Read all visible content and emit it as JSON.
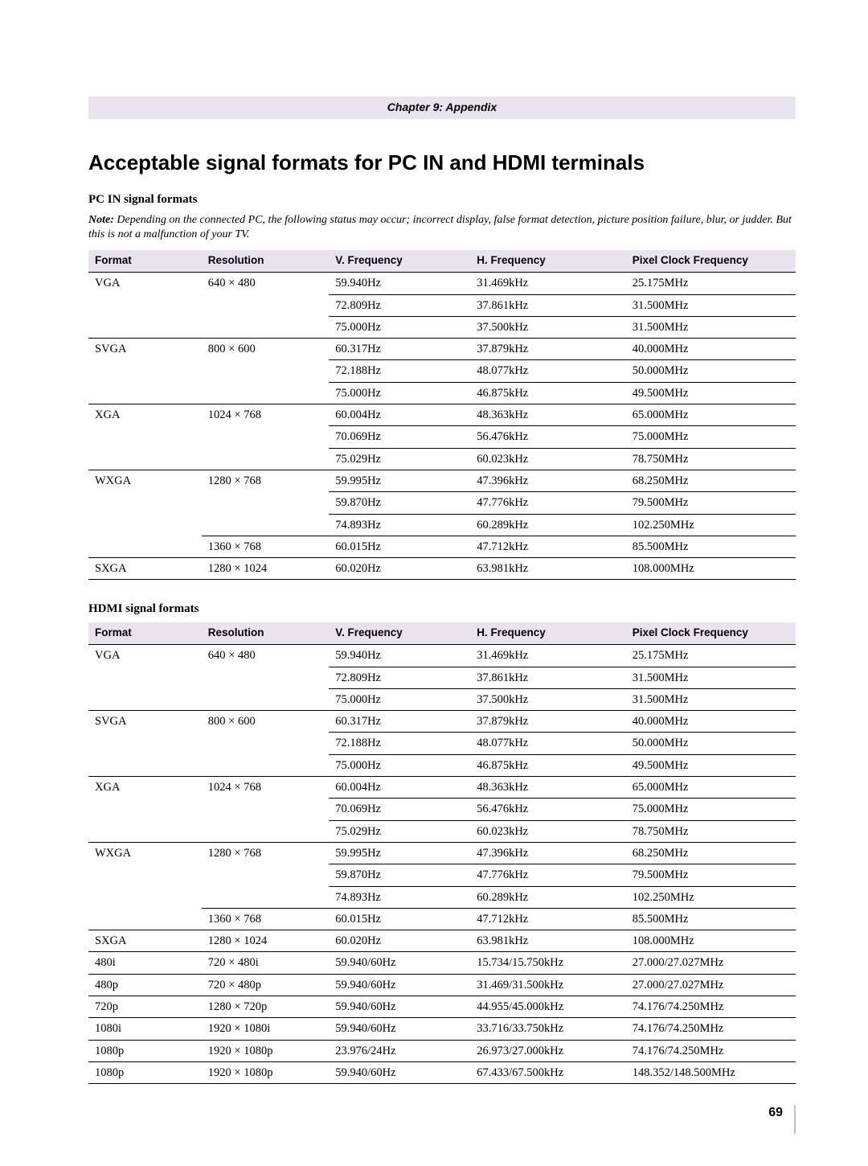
{
  "chapter_label": "Chapter 9: Appendix",
  "title": "Acceptable signal formats for PC IN and HDMI terminals",
  "note_bold": "Note:",
  "note_text": " Depending on the connected PC, the following status may occur; incorrect display, false format detection, picture position failure, blur, or judder. But this is not a malfunction of your TV.",
  "headers": {
    "format": "Format",
    "resolution": "Resolution",
    "vfreq": "V. Frequency",
    "hfreq": "H. Frequency",
    "pclk": "Pixel Clock Frequency"
  },
  "pc_heading": "PC IN signal formats",
  "hdmi_heading": "HDMI signal formats",
  "pc_rows": [
    {
      "f": "VGA",
      "r": "640 × 480",
      "v": "59.940Hz",
      "h": "31.469kHz",
      "p": "25.175MHz"
    },
    {
      "f": "",
      "r": "",
      "v": "72.809Hz",
      "h": "37.861kHz",
      "p": "31.500MHz"
    },
    {
      "f": "",
      "r": "",
      "v": "75.000Hz",
      "h": "37.500kHz",
      "p": "31.500MHz"
    },
    {
      "f": "SVGA",
      "r": "800 × 600",
      "v": "60.317Hz",
      "h": "37.879kHz",
      "p": "40.000MHz"
    },
    {
      "f": "",
      "r": "",
      "v": "72.188Hz",
      "h": "48.077kHz",
      "p": "50.000MHz"
    },
    {
      "f": "",
      "r": "",
      "v": "75.000Hz",
      "h": "46.875kHz",
      "p": "49.500MHz"
    },
    {
      "f": "XGA",
      "r": "1024 × 768",
      "v": "60.004Hz",
      "h": "48.363kHz",
      "p": "65.000MHz"
    },
    {
      "f": "",
      "r": "",
      "v": "70.069Hz",
      "h": "56.476kHz",
      "p": "75.000MHz"
    },
    {
      "f": "",
      "r": "",
      "v": "75.029Hz",
      "h": "60.023kHz",
      "p": "78.750MHz"
    },
    {
      "f": "WXGA",
      "r": "1280 × 768",
      "v": "59.995Hz",
      "h": "47.396kHz",
      "p": "68.250MHz"
    },
    {
      "f": "",
      "r": "",
      "v": "59.870Hz",
      "h": "47.776kHz",
      "p": "79.500MHz"
    },
    {
      "f": "",
      "r": "",
      "v": "74.893Hz",
      "h": "60.289kHz",
      "p": "102.250MHz"
    },
    {
      "f": "",
      "r": "1360 × 768",
      "v": "60.015Hz",
      "h": "47.712kHz",
      "p": "85.500MHz"
    },
    {
      "f": "SXGA",
      "r": "1280 × 1024",
      "v": "60.020Hz",
      "h": "63.981kHz",
      "p": "108.000MHz"
    }
  ],
  "hdmi_rows": [
    {
      "f": "VGA",
      "r": "640 × 480",
      "v": "59.940Hz",
      "h": "31.469kHz",
      "p": "25.175MHz"
    },
    {
      "f": "",
      "r": "",
      "v": "72.809Hz",
      "h": "37.861kHz",
      "p": "31.500MHz"
    },
    {
      "f": "",
      "r": "",
      "v": "75.000Hz",
      "h": "37.500kHz",
      "p": "31.500MHz"
    },
    {
      "f": "SVGA",
      "r": "800 × 600",
      "v": "60.317Hz",
      "h": "37.879kHz",
      "p": "40.000MHz"
    },
    {
      "f": "",
      "r": "",
      "v": "72.188Hz",
      "h": "48.077kHz",
      "p": "50.000MHz"
    },
    {
      "f": "",
      "r": "",
      "v": "75.000Hz",
      "h": "46.875kHz",
      "p": "49.500MHz"
    },
    {
      "f": "XGA",
      "r": "1024 × 768",
      "v": "60.004Hz",
      "h": "48.363kHz",
      "p": "65.000MHz"
    },
    {
      "f": "",
      "r": "",
      "v": "70.069Hz",
      "h": "56.476kHz",
      "p": "75.000MHz"
    },
    {
      "f": "",
      "r": "",
      "v": "75.029Hz",
      "h": "60.023kHz",
      "p": "78.750MHz"
    },
    {
      "f": "WXGA",
      "r": "1280 × 768",
      "v": "59.995Hz",
      "h": "47.396kHz",
      "p": "68.250MHz"
    },
    {
      "f": "",
      "r": "",
      "v": "59.870Hz",
      "h": "47.776kHz",
      "p": "79.500MHz"
    },
    {
      "f": "",
      "r": "",
      "v": "74.893Hz",
      "h": "60.289kHz",
      "p": "102.250MHz"
    },
    {
      "f": "",
      "r": "1360 × 768",
      "v": "60.015Hz",
      "h": "47.712kHz",
      "p": "85.500MHz"
    },
    {
      "f": "SXGA",
      "r": "1280 × 1024",
      "v": "60.020Hz",
      "h": "63.981kHz",
      "p": "108.000MHz"
    },
    {
      "f": "480i",
      "r": "720 × 480i",
      "v": "59.940/60Hz",
      "h": "15.734/15.750kHz",
      "p": "27.000/27.027MHz"
    },
    {
      "f": "480p",
      "r": "720 × 480p",
      "v": "59.940/60Hz",
      "h": "31.469/31.500kHz",
      "p": "27.000/27.027MHz"
    },
    {
      "f": "720p",
      "r": "1280 × 720p",
      "v": "59.940/60Hz",
      "h": "44.955/45.000kHz",
      "p": "74.176/74.250MHz"
    },
    {
      "f": "1080i",
      "r": "1920 × 1080i",
      "v": "59.940/60Hz",
      "h": "33.716/33.750kHz",
      "p": "74.176/74.250MHz"
    },
    {
      "f": "1080p",
      "r": "1920 × 1080p",
      "v": "23.976/24Hz",
      "h": "26.973/27.000kHz",
      "p": "74.176/74.250MHz"
    },
    {
      "f": "1080p",
      "r": "1920 × 1080p",
      "v": "59.940/60Hz",
      "h": "67.433/67.500kHz",
      "p": "148.352/148.500MHz"
    }
  ],
  "page_number": "69",
  "colors": {
    "header_bg": "#e8e3ef",
    "border": "#000000",
    "page_rule": "#bfbfbf"
  }
}
